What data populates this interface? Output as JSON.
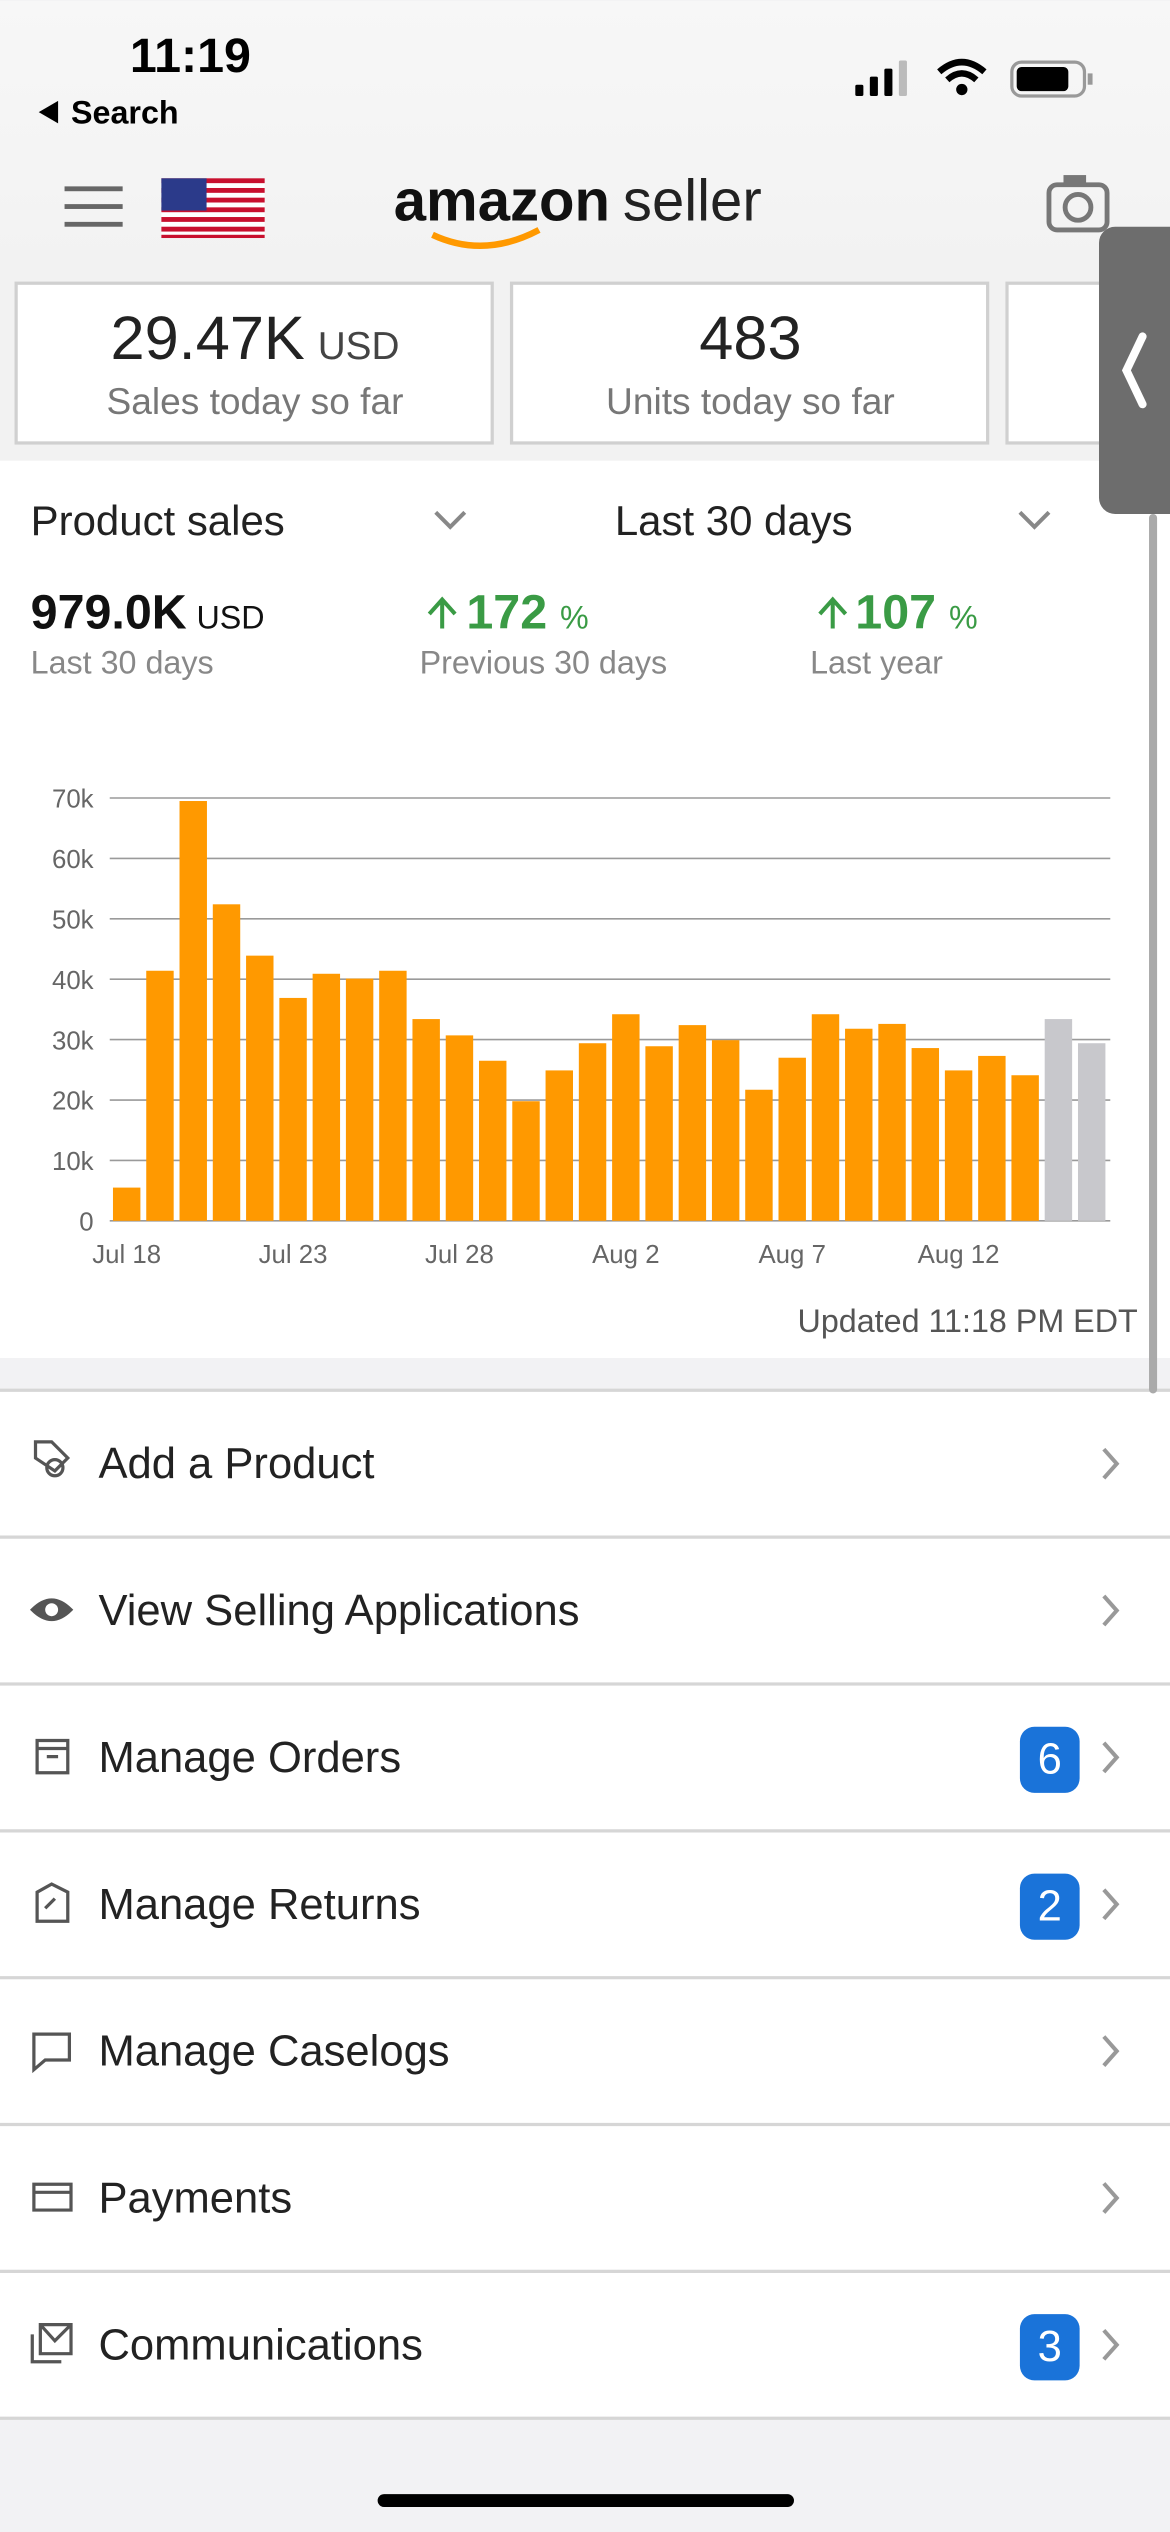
{
  "status_bar": {
    "time": "11:19",
    "back": "Search"
  },
  "header": {
    "logo": "amazon",
    "logo_suffix": "seller"
  },
  "kpis": [
    {
      "value": "29.47K",
      "unit": "USD",
      "label": "Sales today so far"
    },
    {
      "value": "483",
      "label": "Units today so far"
    }
  ],
  "sales": {
    "metric": "Product sales",
    "period": "Last 30 days",
    "stats": [
      {
        "value": "979.0K",
        "unit": "USD",
        "label": "Last 30 days"
      },
      {
        "value": "172",
        "unit": "%",
        "label": "Previous 30 days"
      },
      {
        "value": "107",
        "unit": "%",
        "label": "Last year"
      }
    ]
  },
  "chart_data": {
    "type": "bar",
    "categories": [
      "Jul 18",
      null,
      null,
      null,
      null,
      "Jul 23",
      null,
      null,
      null,
      null,
      "Jul 28",
      null,
      null,
      null,
      null,
      "Aug 2",
      null,
      null,
      null,
      null,
      "Aug 7",
      null,
      null,
      null,
      null,
      "Aug 12",
      null,
      null,
      null,
      null
    ],
    "values": [
      5500,
      41400,
      69500,
      52400,
      43900,
      36900,
      40900,
      40100,
      41400,
      33400,
      30700,
      26500,
      19800,
      24900,
      29400,
      34200,
      28900,
      32400,
      29900,
      21700,
      27000,
      34200,
      31800,
      32600,
      28600,
      24900,
      27300,
      24100,
      33400,
      29400
    ],
    "colors": [
      "#ff9900",
      "#ff9900",
      "#ff9900",
      "#ff9900",
      "#ff9900",
      "#ff9900",
      "#ff9900",
      "#ff9900",
      "#ff9900",
      "#ff9900",
      "#ff9900",
      "#ff9900",
      "#ff9900",
      "#ff9900",
      "#ff9900",
      "#ff9900",
      "#ff9900",
      "#ff9900",
      "#ff9900",
      "#ff9900",
      "#ff9900",
      "#ff9900",
      "#ff9900",
      "#ff9900",
      "#ff9900",
      "#ff9900",
      "#ff9900",
      "#ff9900",
      "#c8c8cc",
      "#c8c8cc"
    ],
    "ylim": [
      0,
      70000
    ],
    "yticks": [
      0,
      {
        "value": 10000,
        "label": "10k"
      },
      {
        "value": 20000,
        "label": "20k"
      },
      {
        "value": 30000,
        "label": "30k"
      },
      {
        "value": 40000,
        "label": "40k"
      },
      {
        "value": 50000,
        "label": "50k"
      },
      {
        "value": 60000,
        "label": "60k"
      },
      {
        "value": 70000,
        "label": "70k"
      }
    ],
    "grid": true,
    "note": "Updated 11:18 PM EDT"
  },
  "menu": [
    {
      "label": "Add a Product"
    },
    {
      "label": "View Selling Applications"
    },
    {
      "label": "Manage Orders",
      "badge": 6
    },
    {
      "label": "Manage Returns",
      "badge": 2
    },
    {
      "label": "Manage Caselogs"
    },
    {
      "label": "Payments"
    },
    {
      "label": "Communications",
      "badge": 3
    }
  ]
}
